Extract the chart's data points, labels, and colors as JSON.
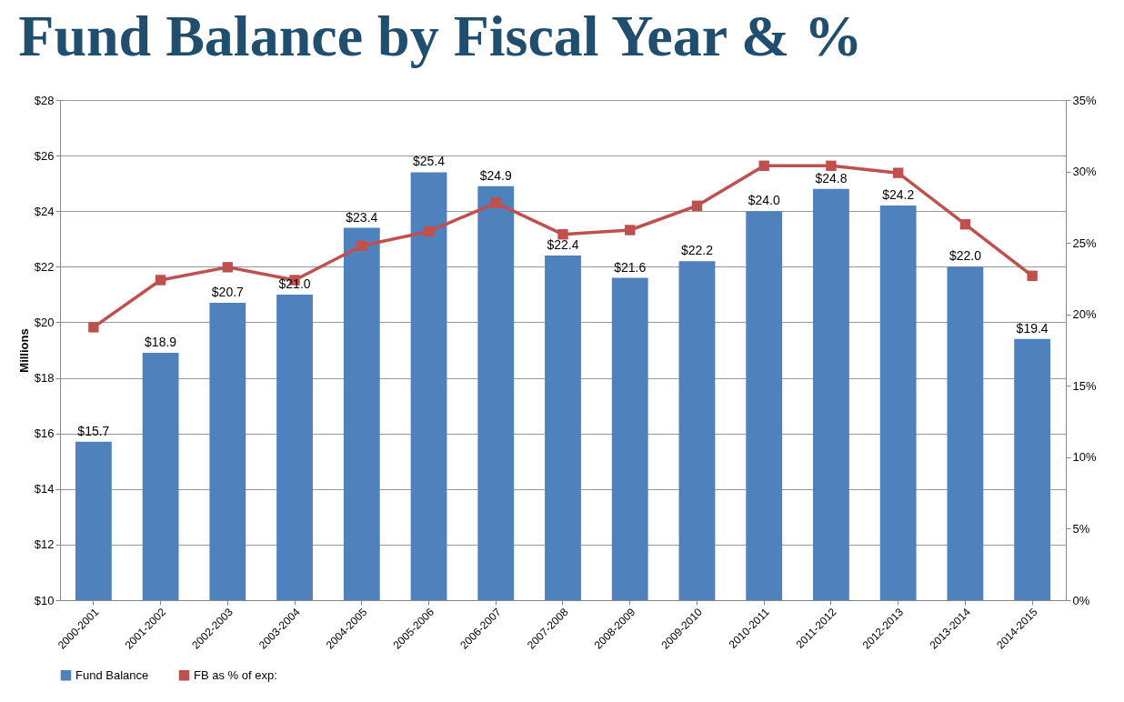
{
  "chart_data": {
    "type": "bar",
    "title": "Fund Balance by Fiscal Year & %",
    "ylabel": "Millions",
    "categories": [
      "2000-2001",
      "2001-2002",
      "2002-2003",
      "2003-2004",
      "2004-2005",
      "2005-2006",
      "2006-2007",
      "2007-2008",
      "2008-2009",
      "2009-2010",
      "2010-2011",
      "2011-2012",
      "2012-2013",
      "2013-2014",
      "2014-2015"
    ],
    "series": [
      {
        "name": "Fund Balance",
        "color": "#4f81bd",
        "values": [
          15.7,
          18.9,
          20.7,
          21.0,
          23.4,
          25.4,
          24.9,
          22.4,
          21.6,
          22.2,
          24.0,
          24.8,
          24.2,
          22.0,
          19.4
        ],
        "value_labels": [
          "$15.7",
          "$18.9",
          "$20.7",
          "$21.0",
          "$23.4",
          "$25.4",
          "$24.9",
          "$22.4",
          "$21.6",
          "$22.2",
          "$24.0",
          "$24.8",
          "$24.2",
          "$22.0",
          "$19.4"
        ]
      },
      {
        "name": "FB as % of exp:",
        "type": "line",
        "axis": "y2",
        "color": "#c0504d",
        "marker": "square",
        "values": [
          19.1,
          22.4,
          23.3,
          22.4,
          24.8,
          25.8,
          27.8,
          25.6,
          25.9,
          27.6,
          30.4,
          30.4,
          29.9,
          26.3,
          22.7
        ]
      }
    ],
    "ylim": [
      10,
      28
    ],
    "yticks": [
      {
        "value": 10,
        "label": "$10"
      },
      {
        "value": 12,
        "label": "$12"
      },
      {
        "value": 14,
        "label": "$14"
      },
      {
        "value": 16,
        "label": "$16"
      },
      {
        "value": 18,
        "label": "$18"
      },
      {
        "value": 20,
        "label": "$20"
      },
      {
        "value": 22,
        "label": "$22"
      },
      {
        "value": 24,
        "label": "$24"
      },
      {
        "value": 26,
        "label": "$26"
      },
      {
        "value": 28,
        "label": "$28"
      }
    ],
    "y2lim": [
      0,
      35
    ],
    "y2ticks": [
      {
        "value": 0,
        "label": "0%"
      },
      {
        "value": 5,
        "label": "5%"
      },
      {
        "value": 10,
        "label": "10%"
      },
      {
        "value": 15,
        "label": "15%"
      },
      {
        "value": 20,
        "label": "20%"
      },
      {
        "value": 25,
        "label": "25%"
      },
      {
        "value": 30,
        "label": "30%"
      },
      {
        "value": 35,
        "label": "35%"
      }
    ],
    "grid": "y",
    "legend": "bottom"
  }
}
